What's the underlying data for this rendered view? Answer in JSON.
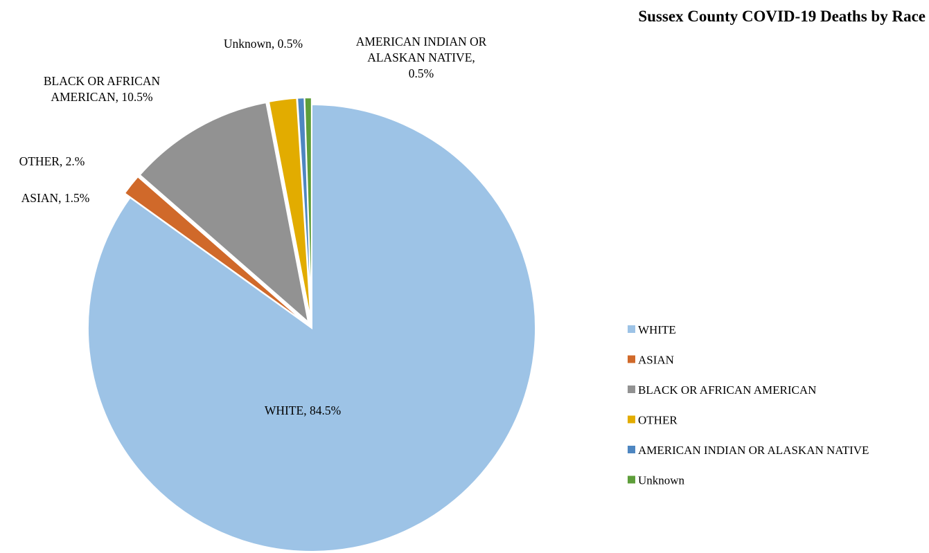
{
  "chart_data": {
    "type": "pie",
    "title": "Sussex County COVID-19 Deaths by Race",
    "slices": [
      {
        "name": "WHITE",
        "value": 84.5,
        "label": "WHITE, 84.5%",
        "color": "#9DC3E6"
      },
      {
        "name": "ASIAN",
        "value": 1.5,
        "label": "ASIAN, 1.5%",
        "color": "#D0692A"
      },
      {
        "name": "BLACK OR AFRICAN AMERICAN",
        "value": 10.5,
        "label": "BLACK OR AFRICAN AMERICAN, 10.5%",
        "color": "#929292"
      },
      {
        "name": "OTHER",
        "value": 2.0,
        "label": "OTHER, 2.%",
        "color": "#E2AC00"
      },
      {
        "name": "AMERICAN INDIAN OR ALASKAN NATIVE",
        "value": 0.5,
        "label": "AMERICAN INDIAN OR ALASKAN NATIVE, 0.5%",
        "color": "#4E86C1"
      },
      {
        "name": "Unknown",
        "value": 0.5,
        "label": "Unknown, 0.5%",
        "color": "#5E9E3A"
      }
    ],
    "legend_position": "right",
    "exploded": true
  }
}
